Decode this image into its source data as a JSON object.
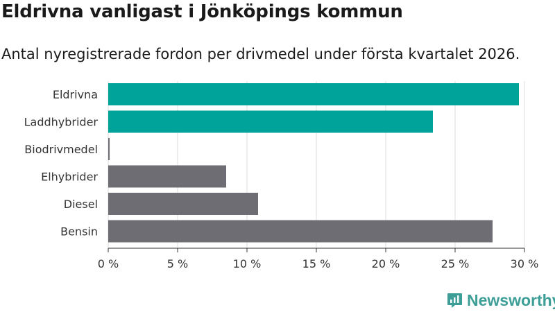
{
  "header": {
    "title": "Eldrivna vanligast i Jönköpings kommun",
    "subtitle": "Antal nyregistrerade fordon per drivmedel under första kvartalet 2026."
  },
  "chart_data": {
    "type": "bar",
    "orientation": "horizontal",
    "categories": [
      "Eldrivna",
      "Laddhybrider",
      "Biodrivmedel",
      "Elhybrider",
      "Diesel",
      "Bensin"
    ],
    "values": [
      29.6,
      23.4,
      0.1,
      8.5,
      10.8,
      27.7
    ],
    "colors": [
      "#00a39a",
      "#00a39a",
      "#6e6d73",
      "#6e6d73",
      "#6e6d73",
      "#6e6d73"
    ],
    "xlim": [
      0,
      30
    ],
    "xticks": [
      0,
      5,
      10,
      15,
      20,
      25,
      30
    ],
    "tick_labels": [
      "0 %",
      "5 %",
      "10 %",
      "15 %",
      "20 %",
      "25 %",
      "30 %"
    ],
    "grid": true
  },
  "branding": {
    "name": "Newsworthy",
    "color": "#3d9e97",
    "icon": "newsworthy-logo-icon"
  }
}
